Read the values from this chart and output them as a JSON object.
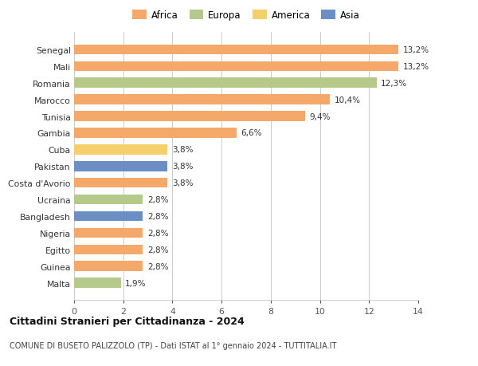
{
  "countries": [
    "Malta",
    "Guinea",
    "Egitto",
    "Nigeria",
    "Bangladesh",
    "Ucraina",
    "Costa d'Avorio",
    "Pakistan",
    "Cuba",
    "Gambia",
    "Tunisia",
    "Marocco",
    "Romania",
    "Mali",
    "Senegal"
  ],
  "values": [
    1.9,
    2.8,
    2.8,
    2.8,
    2.8,
    2.8,
    3.8,
    3.8,
    3.8,
    6.6,
    9.4,
    10.4,
    12.3,
    13.2,
    13.2
  ],
  "labels": [
    "1,9%",
    "2,8%",
    "2,8%",
    "2,8%",
    "2,8%",
    "2,8%",
    "3,8%",
    "3,8%",
    "3,8%",
    "6,6%",
    "9,4%",
    "10,4%",
    "12,3%",
    "13,2%",
    "13,2%"
  ],
  "colors": [
    "#b5c98a",
    "#f4a96a",
    "#f4a96a",
    "#f4a96a",
    "#6b8ec4",
    "#b5c98a",
    "#f4a96a",
    "#6b8ec4",
    "#f5d06a",
    "#f4a96a",
    "#f4a96a",
    "#f4a96a",
    "#b5c98a",
    "#f4a96a",
    "#f4a96a"
  ],
  "legend": [
    {
      "label": "Africa",
      "color": "#f4a96a"
    },
    {
      "label": "Europa",
      "color": "#b5c98a"
    },
    {
      "label": "America",
      "color": "#f5d06a"
    },
    {
      "label": "Asia",
      "color": "#6b8ec4"
    }
  ],
  "xlim": [
    0,
    14
  ],
  "xticks": [
    0,
    2,
    4,
    6,
    8,
    10,
    12,
    14
  ],
  "title": "Cittadini Stranieri per Cittadinanza - 2024",
  "subtitle": "COMUNE DI BUSETO PALIZZOLO (TP) - Dati ISTAT al 1° gennaio 2024 - TUTTITALIA.IT",
  "background_color": "#ffffff",
  "bar_height": 0.6,
  "grid_color": "#cccccc"
}
